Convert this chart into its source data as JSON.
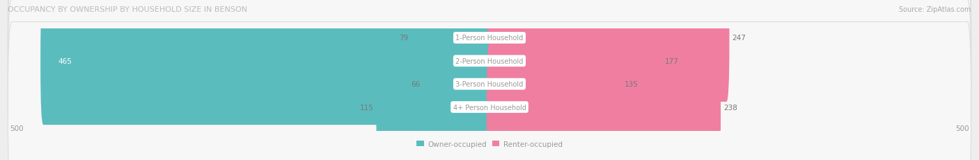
{
  "title": "OCCUPANCY BY OWNERSHIP BY HOUSEHOLD SIZE IN BENSON",
  "source": "Source: ZipAtlas.com",
  "categories": [
    "1-Person Household",
    "2-Person Household",
    "3-Person Household",
    "4+ Person Household"
  ],
  "owner_values": [
    79,
    465,
    66,
    115
  ],
  "renter_values": [
    247,
    177,
    135,
    238
  ],
  "owner_color": "#5bbcbe",
  "renter_color": "#f07ea0",
  "renter_color_light": "#f5a8c0",
  "axis_max": 500,
  "label_color": "#999999",
  "title_color": "#bbbbbb",
  "source_color": "#aaaaaa",
  "bg_color": "#eeeeee",
  "row_bg_color": "#f7f7f7",
  "row_border_color": "#dddddd",
  "center_label_bg": "#ffffff",
  "center_label_color": "#999999",
  "value_color": "#777777",
  "figsize": [
    14.06,
    2.32
  ],
  "dpi": 100
}
